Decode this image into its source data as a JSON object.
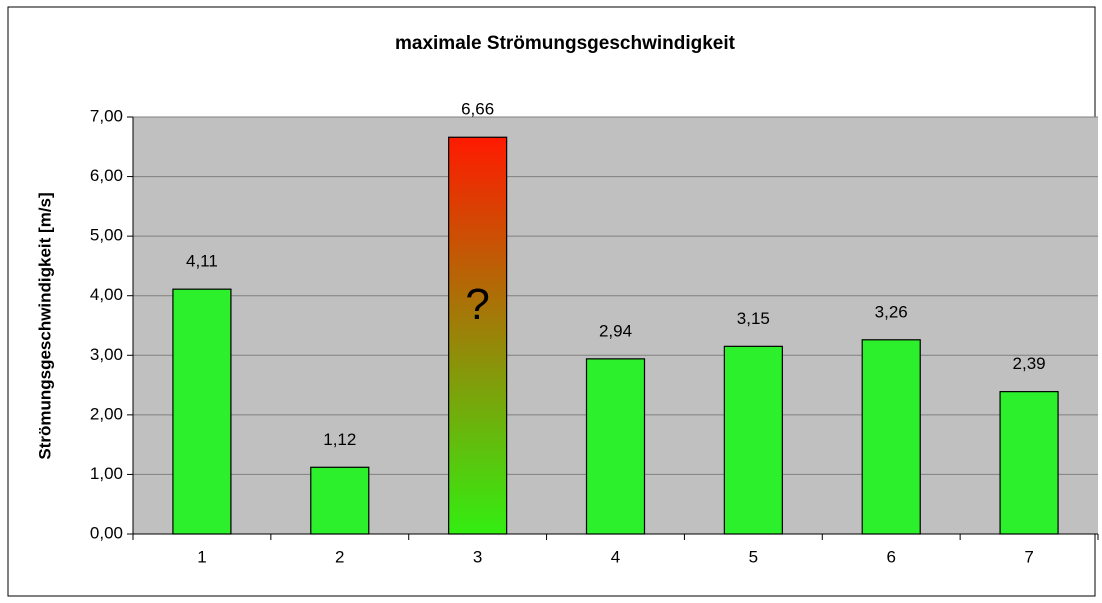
{
  "chart_data": {
    "type": "bar",
    "title": "maximale Strömungsgeschwindigkeit",
    "y_label": "Strömungsgeschwindigkeit [m/s]",
    "categories": [
      "1",
      "2",
      "3",
      "4",
      "5",
      "6",
      "7"
    ],
    "values": [
      4.11,
      1.12,
      6.66,
      2.94,
      3.15,
      3.26,
      2.39
    ],
    "value_labels": [
      "4,11",
      "1,12",
      "6,66",
      "2,94",
      "3,15",
      "3,26",
      "2,39"
    ],
    "color": "#2bf02b",
    "highlight": {
      "index": 2,
      "colors": [
        "#ff1a00",
        "#33ee11"
      ],
      "annotation": "?"
    },
    "ylim": [
      0,
      7
    ],
    "yticks": [
      {
        "value": 0,
        "label": "0,00"
      },
      {
        "value": 1,
        "label": "1,00"
      },
      {
        "value": 2,
        "label": "2,00"
      },
      {
        "value": 3,
        "label": "3,00"
      },
      {
        "value": 4,
        "label": "4,00"
      },
      {
        "value": 5,
        "label": "5,00"
      },
      {
        "value": 6,
        "label": "6,00"
      },
      {
        "value": 7,
        "label": "7,00"
      }
    ],
    "grid": true,
    "plot_background": "#c0c0c0"
  }
}
